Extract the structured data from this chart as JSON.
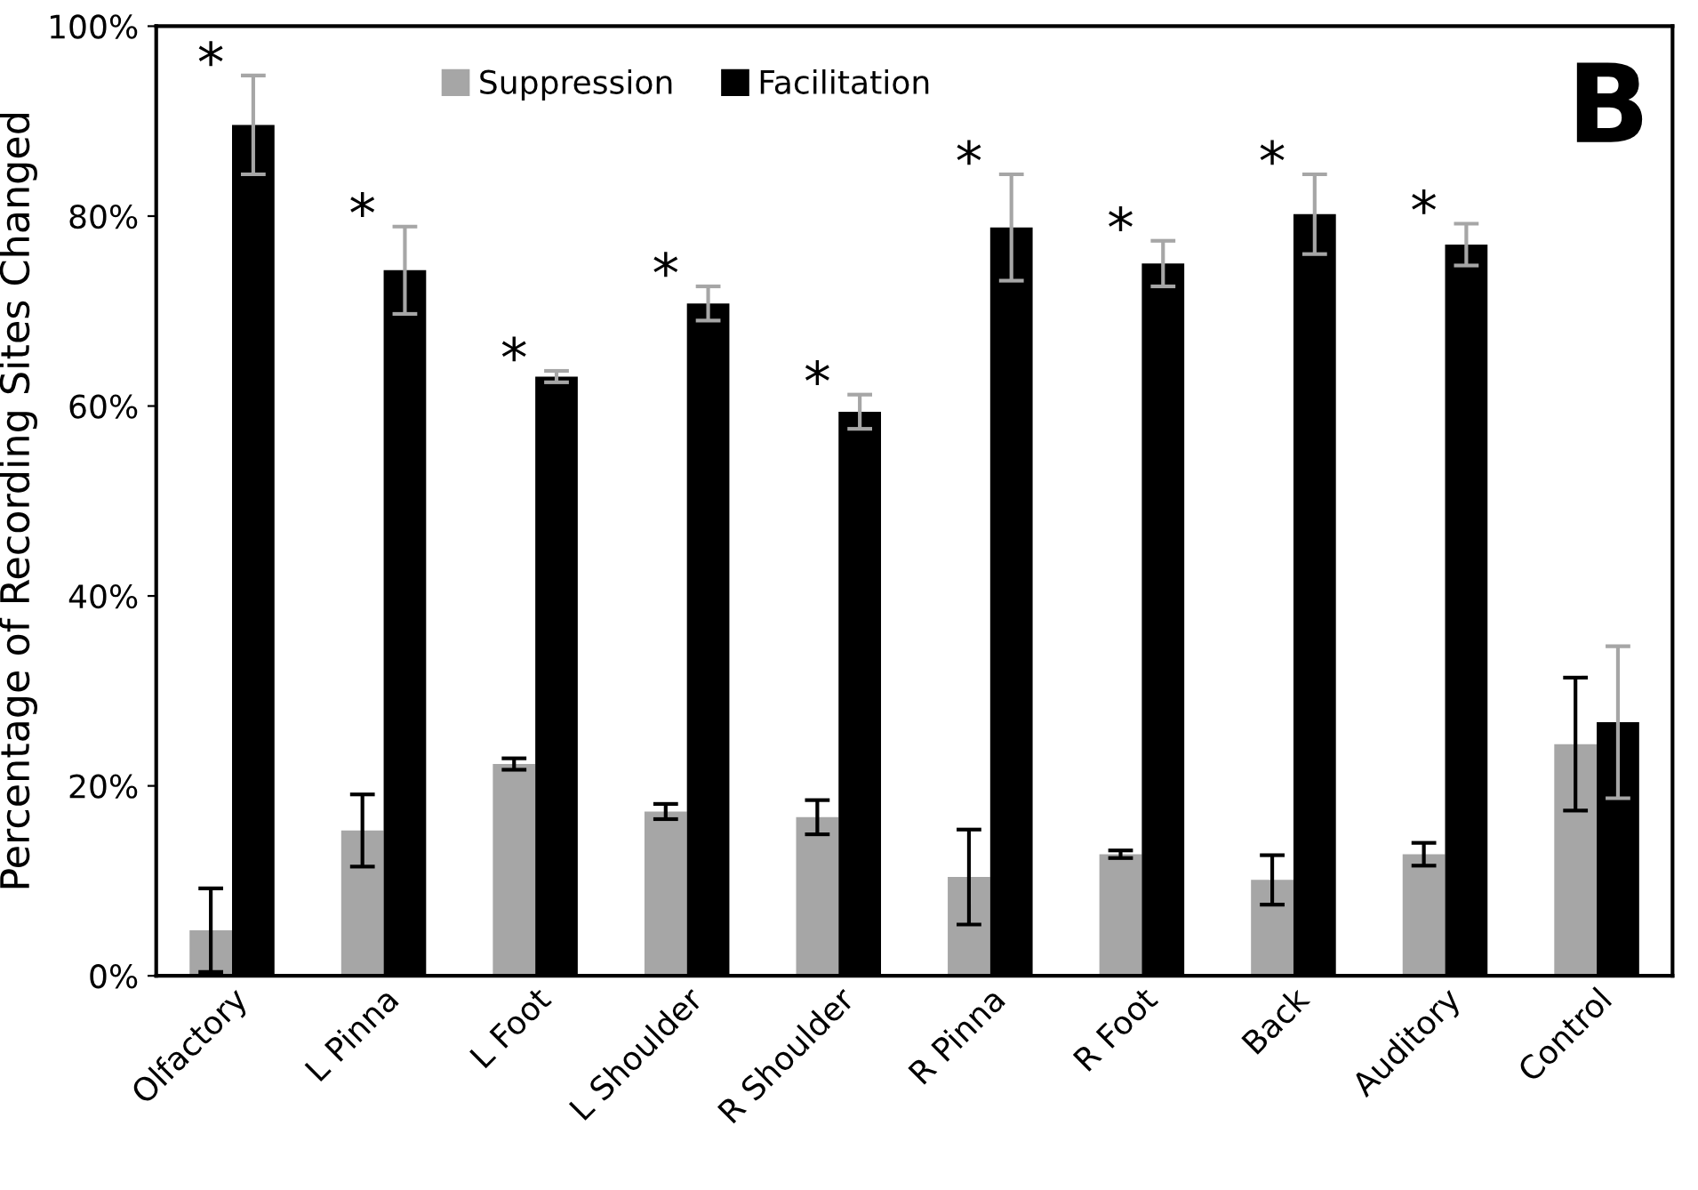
{
  "chart_data": {
    "type": "bar",
    "ylabel": "Percentage of Recording Sites Changed",
    "categories": [
      "Olfactory",
      "L Pinna",
      "L Foot",
      "L Shoulder",
      "R Shoulder",
      "R Pinna",
      "R Foot",
      "Back",
      "Auditory",
      "Control"
    ],
    "series": [
      {
        "name": "Suppression",
        "color": "#a6a6a6",
        "values": [
          4.8,
          15.3,
          22.3,
          17.3,
          16.7,
          10.4,
          12.8,
          10.1,
          12.8,
          24.4
        ],
        "errors": [
          4.4,
          3.8,
          0.6,
          0.8,
          1.8,
          5.0,
          0.4,
          2.6,
          1.2,
          7.0
        ]
      },
      {
        "name": "Facilitation",
        "color": "#000000",
        "values": [
          89.6,
          74.3,
          63.1,
          70.8,
          59.4,
          78.8,
          75.0,
          80.2,
          77.0,
          26.7
        ],
        "errors": [
          5.2,
          4.6,
          0.6,
          1.8,
          1.8,
          5.6,
          2.4,
          4.2,
          2.2,
          8.0
        ]
      }
    ],
    "ylim": [
      0,
      100
    ],
    "yticks": [
      {
        "value": 0,
        "label": "0%"
      },
      {
        "value": 20,
        "label": "20%"
      },
      {
        "value": 40,
        "label": "40%"
      },
      {
        "value": 60,
        "label": "60%"
      },
      {
        "value": 80,
        "label": "80%"
      },
      {
        "value": 100,
        "label": "100%"
      }
    ],
    "legend": "top",
    "annotations": [
      "*",
      "*",
      "*",
      "*",
      "*",
      "*",
      "*",
      "*",
      "*",
      "B"
    ]
  }
}
